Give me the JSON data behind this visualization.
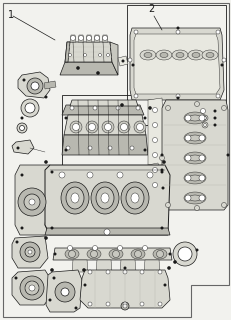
{
  "bg": "#f2f2ee",
  "white": "#ffffff",
  "lc": "#1a1a1a",
  "gray1": "#c8c8c0",
  "gray2": "#b8b8b0",
  "gray3": "#d8d8d0",
  "gray4": "#e8e8e0",
  "border": "#666666",
  "lw_main": 0.7,
  "lw_part": 0.5,
  "lw_detail": 0.3,
  "label1": "1",
  "label2": "2"
}
